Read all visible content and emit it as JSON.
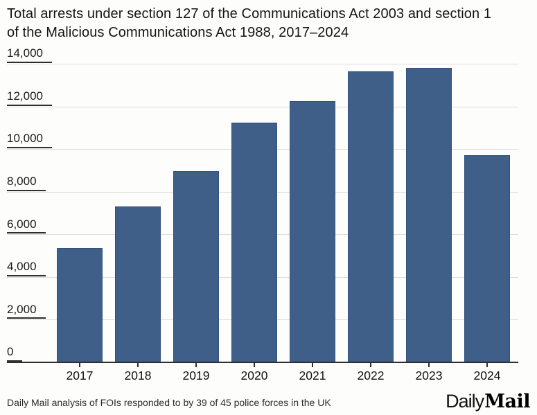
{
  "title": {
    "line1": "Total arrests under section 127 of the Communications Act 2003 and section 1",
    "line2": "of the Malicious Communications Act 1988, 2017–2024"
  },
  "chart_data": {
    "type": "bar",
    "title": "Total arrests under section 127 of the Communications Act 2003 and section 1 of the Malicious Communications Act 1988, 2017–2024",
    "categories": [
      "2017",
      "2018",
      "2019",
      "2020",
      "2021",
      "2022",
      "2023",
      "2024"
    ],
    "values": [
      5350,
      7300,
      8950,
      11250,
      12250,
      13650,
      13800,
      9700
    ],
    "xlabel": "",
    "ylabel": "",
    "ylim": [
      0,
      14000
    ],
    "yticks": [
      0,
      2000,
      4000,
      6000,
      8000,
      10000,
      12000,
      14000
    ],
    "ytick_labels": [
      "0",
      "2,000",
      "4,000",
      "6,000",
      "8,000",
      "10,000",
      "12,000",
      "14,000"
    ],
    "grid": true,
    "legend_position": "none",
    "bar_color": "#3F5E88"
  },
  "footer": {
    "source": "Daily Mail analysis of FOIs responded to by 39 of 45 police forces in the UK",
    "logo_daily": "Daily",
    "logo_mail": "Mail"
  },
  "colors": {
    "bar": "#3F5E88",
    "bar_border": "#33517D",
    "gridline": "#DDDDDD",
    "axis": "#2E2E2E",
    "title_text": "#141414",
    "footer_text": "#2B2B2B",
    "background": "#FDFDFC"
  }
}
